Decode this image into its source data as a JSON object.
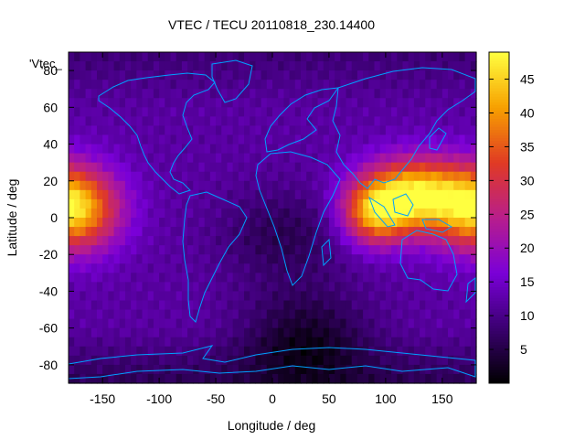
{
  "chart_data": {
    "type": "heatmap",
    "title": "VTEC / TECU 20110818_230.14400",
    "xlabel": "Longitude / deg",
    "ylabel": "Latitude / deg",
    "xlim": [
      -180,
      180
    ],
    "ylim": [
      -90,
      90
    ],
    "x_ticks": [
      -150,
      -100,
      -50,
      0,
      50,
      100,
      150
    ],
    "y_ticks": [
      80,
      60,
      40,
      20,
      0,
      -20,
      -40,
      -60,
      -80
    ],
    "y_tick_labels": [
      "'80",
      "60",
      "40",
      "20",
      "0",
      "-20",
      "-40",
      "-60",
      "-80"
    ],
    "colorbar": {
      "range": [
        0,
        49
      ],
      "ticks": [
        5,
        10,
        15,
        20,
        25,
        30,
        35,
        40,
        45
      ],
      "colormap": [
        "#000000",
        "#3a0070",
        "#7a00d8",
        "#b81e8c",
        "#e03a24",
        "#f7a000",
        "#ffff40"
      ]
    },
    "series_label": "'Vtec_",
    "background_level": 12,
    "features": [
      {
        "name": "pacific-crest",
        "lon": -175,
        "lat": 5,
        "peak": 44
      },
      {
        "name": "asia-crest",
        "lon": 125,
        "lat": 12,
        "peak": 46
      },
      {
        "name": "indian-ocean-crest",
        "lon": 90,
        "lat": 2,
        "peak": 35
      },
      {
        "name": "africa-trough",
        "lon": 10,
        "lat": -10,
        "peak": 6
      },
      {
        "name": "south-polar-trough",
        "lon": 30,
        "lat": -65,
        "peak": 3
      }
    ],
    "coastline_color": "#00a0ff",
    "grid": false
  }
}
